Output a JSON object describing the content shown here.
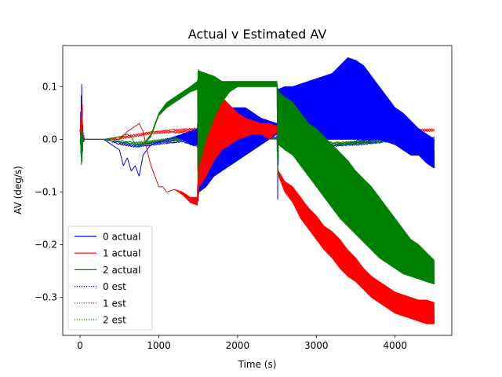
{
  "chart_data": {
    "type": "line",
    "title": "Actual v Estimated AV",
    "xlabel": "Time (s)",
    "ylabel": "AV (deg/s)",
    "xlim": [
      -220,
      4720
    ],
    "ylim": [
      -0.372,
      0.178
    ],
    "xticks": [
      0,
      1000,
      2000,
      3000,
      4000
    ],
    "yticks": [
      0.1,
      0.0,
      -0.1,
      -0.2,
      -0.3
    ],
    "ytick_labels": [
      "0.1",
      "0.0",
      "−0.1",
      "−0.2",
      "−0.3"
    ],
    "grid": false,
    "legend_position": "lower-left",
    "series": [
      {
        "name": "0 actual",
        "color": "#0000ff",
        "style": "solid",
        "envelope": {
          "x": [
            0,
            20,
            40,
            60,
            100,
            300,
            500,
            550,
            600,
            650,
            700,
            750,
            800,
            850,
            900,
            1000,
            1100,
            1200,
            1300,
            1400,
            1490,
            1500,
            1510,
            1600,
            1700,
            1800,
            1900,
            2000,
            2100,
            2200,
            2300,
            2400,
            2500,
            2510,
            2520,
            2600,
            2700,
            2800,
            2900,
            3000,
            3100,
            3200,
            3300,
            3400,
            3500,
            3600,
            3700,
            3800,
            3900,
            4000,
            4100,
            4200,
            4300,
            4400,
            4500
          ],
          "upper": [
            0.02,
            0.11,
            0.0,
            0.0,
            0.0,
            0.0,
            -0.02,
            -0.05,
            -0.035,
            -0.06,
            -0.05,
            -0.07,
            -0.03,
            -0.02,
            -0.01,
            -0.005,
            0.0,
            0.005,
            0.01,
            0.015,
            0.02,
            0.12,
            0.02,
            0.04,
            0.05,
            0.055,
            0.06,
            0.06,
            0.06,
            0.05,
            0.04,
            0.035,
            0.03,
            0.09,
            0.095,
            0.1,
            0.1,
            0.105,
            0.11,
            0.115,
            0.12,
            0.125,
            0.14,
            0.155,
            0.15,
            0.14,
            0.12,
            0.1,
            0.08,
            0.06,
            0.05,
            0.035,
            0.02,
            0.01,
            0.0
          ],
          "lower": [
            0.02,
            -0.05,
            0.0,
            0.0,
            0.0,
            0.0,
            -0.02,
            -0.05,
            -0.035,
            -0.06,
            -0.05,
            -0.07,
            -0.03,
            -0.02,
            -0.01,
            -0.005,
            0.0,
            0.005,
            0.0,
            -0.01,
            -0.01,
            -0.12,
            -0.1,
            -0.09,
            -0.07,
            -0.06,
            -0.05,
            -0.04,
            -0.03,
            -0.02,
            -0.01,
            0.0,
            0.01,
            -0.12,
            -0.01,
            -0.005,
            0.0,
            0.0,
            0.0,
            0.0,
            0.0,
            0.0,
            0.0,
            0.0,
            0.0,
            0.0,
            0.0,
            0.0,
            -0.005,
            -0.01,
            -0.02,
            -0.03,
            -0.03,
            -0.045,
            -0.055
          ]
        }
      },
      {
        "name": "1 actual",
        "color": "#ff0000",
        "style": "solid",
        "envelope": {
          "x": [
            0,
            20,
            40,
            60,
            100,
            300,
            500,
            600,
            700,
            750,
            800,
            850,
            900,
            950,
            1000,
            1050,
            1100,
            1200,
            1300,
            1400,
            1490,
            1500,
            1510,
            1600,
            1700,
            1800,
            1900,
            2000,
            2100,
            2200,
            2300,
            2400,
            2500,
            2510,
            2520,
            2600,
            2700,
            2800,
            2900,
            3000,
            3100,
            3200,
            3300,
            3400,
            3500,
            3600,
            3700,
            3800,
            3900,
            4000,
            4100,
            4200,
            4300,
            4400,
            4500
          ],
          "upper": [
            0.02,
            0.07,
            0.0,
            0.0,
            0.0,
            0.0,
            0.0,
            0.015,
            0.025,
            0.03,
            0.015,
            -0.02,
            -0.05,
            -0.07,
            -0.09,
            -0.09,
            -0.1,
            -0.095,
            -0.1,
            -0.11,
            -0.11,
            0.13,
            0.12,
            0.12,
            0.1,
            0.08,
            0.065,
            0.05,
            0.04,
            0.035,
            0.03,
            0.03,
            0.025,
            -0.055,
            -0.06,
            -0.08,
            -0.09,
            -0.11,
            -0.13,
            -0.145,
            -0.165,
            -0.175,
            -0.19,
            -0.21,
            -0.225,
            -0.245,
            -0.26,
            -0.27,
            -0.28,
            -0.29,
            -0.295,
            -0.3,
            -0.305,
            -0.305,
            -0.31
          ],
          "lower": [
            0.02,
            -0.03,
            0.0,
            0.0,
            0.0,
            0.0,
            0.0,
            0.015,
            0.025,
            0.03,
            0.015,
            -0.02,
            -0.05,
            -0.07,
            -0.09,
            -0.09,
            -0.1,
            -0.095,
            -0.105,
            -0.12,
            -0.125,
            -0.11,
            -0.09,
            -0.07,
            -0.04,
            -0.02,
            -0.01,
            0.0,
            0.005,
            0.01,
            0.01,
            0.0,
            0.015,
            -0.055,
            -0.07,
            -0.1,
            -0.12,
            -0.15,
            -0.17,
            -0.19,
            -0.21,
            -0.225,
            -0.245,
            -0.26,
            -0.27,
            -0.285,
            -0.3,
            -0.31,
            -0.32,
            -0.33,
            -0.335,
            -0.34,
            -0.345,
            -0.35,
            -0.35
          ]
        }
      },
      {
        "name": "2 actual",
        "color": "#008000",
        "style": "solid",
        "envelope": {
          "x": [
            0,
            20,
            40,
            60,
            100,
            300,
            500,
            600,
            650,
            700,
            750,
            800,
            900,
            1000,
            1100,
            1200,
            1300,
            1400,
            1490,
            1500,
            1510,
            1600,
            1700,
            1800,
            1900,
            2000,
            2100,
            2200,
            2300,
            2400,
            2500,
            2510,
            2520,
            2600,
            2700,
            2800,
            2900,
            3000,
            3100,
            3200,
            3300,
            3400,
            3500,
            3600,
            3700,
            3800,
            3900,
            4000,
            4100,
            4200,
            4300,
            4400,
            4500
          ],
          "upper": [
            0.0,
            0.02,
            0.0,
            0.0,
            0.0,
            0.0,
            0.005,
            0.01,
            0.005,
            -0.01,
            -0.015,
            -0.01,
            0.01,
            0.05,
            0.07,
            0.08,
            0.09,
            0.1,
            0.11,
            0.135,
            0.13,
            0.125,
            0.12,
            0.11,
            0.11,
            0.11,
            0.11,
            0.11,
            0.11,
            0.11,
            0.11,
            0.1,
            0.09,
            0.08,
            0.07,
            0.05,
            0.03,
            0.02,
            0.005,
            -0.01,
            -0.025,
            -0.04,
            -0.06,
            -0.075,
            -0.09,
            -0.11,
            -0.13,
            -0.15,
            -0.17,
            -0.19,
            -0.2,
            -0.215,
            -0.23
          ],
          "lower": [
            0.0,
            -0.055,
            0.0,
            0.0,
            0.0,
            0.0,
            0.005,
            0.01,
            0.005,
            -0.01,
            -0.015,
            -0.01,
            0.005,
            0.045,
            0.06,
            0.07,
            0.08,
            0.09,
            0.095,
            -0.08,
            -0.05,
            0.0,
            0.04,
            0.07,
            0.09,
            0.1,
            0.1,
            0.1,
            0.1,
            0.1,
            0.1,
            -0.08,
            -0.01,
            -0.02,
            -0.03,
            -0.05,
            -0.07,
            -0.09,
            -0.11,
            -0.13,
            -0.15,
            -0.165,
            -0.18,
            -0.195,
            -0.21,
            -0.225,
            -0.235,
            -0.245,
            -0.255,
            -0.26,
            -0.265,
            -0.27,
            -0.275
          ]
        }
      },
      {
        "name": "0 est",
        "color": "#0000ff",
        "style": "dotted",
        "envelope": {
          "x": [
            0,
            30,
            60,
            300,
            500,
            700,
            900,
            1100,
            1300,
            1500,
            1700,
            1900,
            2100,
            2300,
            2500,
            2600,
            2800,
            3000,
            3200,
            3400,
            3600,
            3800,
            4000,
            4200,
            4400,
            4500
          ],
          "upper": [
            0.0,
            0.02,
            0.0,
            0.0,
            -0.005,
            -0.01,
            -0.005,
            0.0,
            0.005,
            0.01,
            0.01,
            0.01,
            0.008,
            0.005,
            0.005,
            0.0,
            -0.005,
            -0.01,
            -0.01,
            -0.005,
            0.0,
            0.0,
            0.002,
            0.003,
            0.004,
            0.004
          ],
          "lower": [
            0.0,
            -0.01,
            0.0,
            0.0,
            -0.01,
            -0.015,
            -0.012,
            -0.008,
            -0.005,
            -0.015,
            -0.008,
            -0.004,
            -0.002,
            0.0,
            0.0,
            -0.012,
            -0.015,
            -0.016,
            -0.014,
            -0.012,
            -0.01,
            -0.007,
            -0.004,
            -0.002,
            0.0,
            0.0
          ]
        }
      },
      {
        "name": "1 est",
        "color": "#ff0000",
        "style": "dotted",
        "envelope": {
          "x": [
            0,
            30,
            60,
            300,
            500,
            700,
            900,
            1100,
            1300,
            1500,
            1700,
            1900,
            2100,
            2300,
            2500,
            2600,
            2800,
            3000,
            3200,
            3400,
            3600,
            3800,
            4000,
            4200,
            4400,
            4500
          ],
          "upper": [
            0.0,
            0.01,
            0.0,
            0.0,
            0.005,
            0.01,
            0.015,
            0.018,
            0.02,
            0.022,
            0.022,
            0.02,
            0.018,
            0.016,
            0.015,
            0.01,
            0.012,
            0.015,
            0.018,
            0.02,
            0.02,
            0.02,
            0.02,
            0.02,
            0.02,
            0.02
          ],
          "lower": [
            0.0,
            -0.005,
            0.0,
            0.0,
            0.0,
            0.005,
            0.01,
            0.012,
            0.012,
            0.005,
            0.01,
            0.012,
            0.012,
            0.01,
            0.01,
            0.0,
            0.005,
            0.008,
            0.01,
            0.012,
            0.014,
            0.015,
            0.015,
            0.015,
            0.015,
            0.015
          ]
        }
      },
      {
        "name": "2 est",
        "color": "#008000",
        "style": "dotted",
        "envelope": {
          "x": [
            0,
            30,
            60,
            300,
            500,
            700,
            900,
            1100,
            1300,
            1500,
            1700,
            1900,
            2100,
            2300,
            2500,
            2600,
            2800,
            3000,
            3200,
            3400,
            3600,
            3800,
            4000,
            4200,
            4400,
            4500
          ],
          "upper": [
            0.0,
            0.005,
            0.0,
            0.0,
            -0.002,
            -0.005,
            -0.002,
            0.002,
            0.005,
            0.008,
            0.008,
            0.008,
            0.006,
            0.004,
            0.003,
            0.0,
            -0.003,
            -0.005,
            -0.005,
            -0.004,
            -0.003,
            -0.002,
            -0.001,
            0.0,
            0.0,
            0.0
          ],
          "lower": [
            0.0,
            -0.005,
            0.0,
            0.0,
            -0.006,
            -0.01,
            -0.008,
            -0.004,
            -0.002,
            -0.008,
            -0.004,
            -0.002,
            0.0,
            0.0,
            0.0,
            -0.008,
            -0.01,
            -0.012,
            -0.012,
            -0.01,
            -0.008,
            -0.006,
            -0.005,
            -0.004,
            -0.003,
            -0.003
          ]
        }
      }
    ]
  }
}
